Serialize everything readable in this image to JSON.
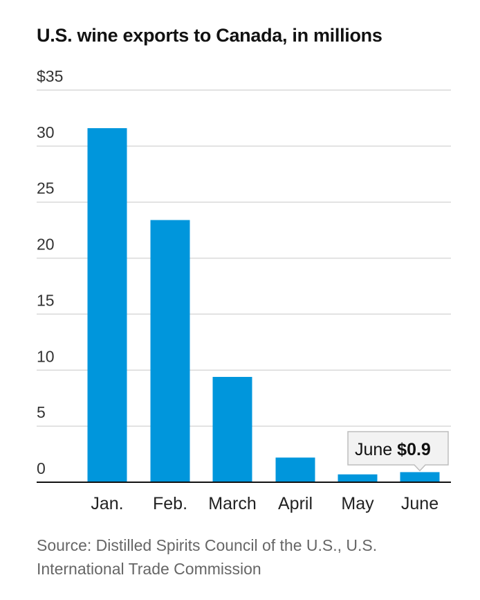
{
  "title": "U.S. wine exports to Canada, in millions",
  "source": "Source: Distilled Spirits Council of the U.S., U.S. International Trade Commission",
  "colors": {
    "bar": "#0096dc",
    "grid": "#d9d9d9",
    "axis": "#111111",
    "tick_text": "#333333",
    "callout_bg": "#f2f2f2",
    "callout_border": "#bdbdbd"
  },
  "chart_data": {
    "type": "bar",
    "title": "U.S. wine exports to Canada, in millions",
    "categories": [
      "Jan.",
      "Feb.",
      "March",
      "April",
      "May",
      "June"
    ],
    "values": [
      31.6,
      23.4,
      9.4,
      2.2,
      0.7,
      0.9
    ],
    "ylim": [
      0,
      35
    ],
    "yticks": [
      0,
      5,
      10,
      15,
      20,
      25,
      30,
      35
    ],
    "ytick_labels": [
      "0",
      "5",
      "10",
      "15",
      "20",
      "25",
      "30",
      "$35"
    ],
    "grid": true,
    "annotation": {
      "category": "June",
      "label": "June",
      "value_label": "$0.9"
    }
  }
}
